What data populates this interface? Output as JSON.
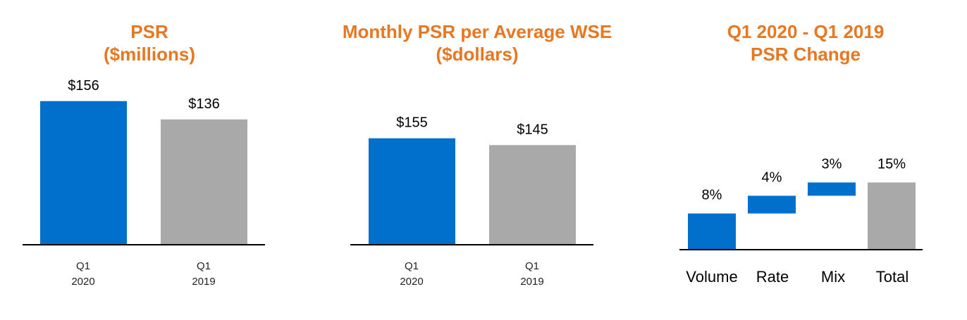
{
  "colors": {
    "title": "#E87722",
    "blue": "#0070CC",
    "gray": "#A9A9A9",
    "axis": "#000000"
  },
  "chart_data": [
    {
      "type": "bar",
      "title": [
        "PSR",
        "($millions)"
      ],
      "categories": [
        [
          "Q1",
          "2020"
        ],
        [
          "Q1",
          "2019"
        ]
      ],
      "values": [
        156,
        136
      ],
      "labels": [
        "$156",
        "$136"
      ],
      "series_colors": [
        "blue",
        "gray"
      ],
      "ylim": [
        0,
        175
      ],
      "grid": false,
      "legend": "none"
    },
    {
      "type": "bar",
      "title": [
        "Monthly PSR per Average WSE",
        "($dollars)"
      ],
      "categories": [
        [
          "Q1",
          "2020"
        ],
        [
          "Q1",
          "2019"
        ]
      ],
      "values": [
        155,
        145
      ],
      "labels": [
        "$155",
        "$145"
      ],
      "series_colors": [
        "blue",
        "gray"
      ],
      "ylim": [
        0,
        235
      ],
      "grid": false,
      "legend": "none"
    },
    {
      "type": "bar",
      "subtype": "waterfall",
      "title": [
        "Q1 2020 - Q1 2019",
        "PSR Change"
      ],
      "categories": [
        "Volume",
        "Rate",
        "Mix",
        "Total"
      ],
      "values": [
        8,
        4,
        3,
        15
      ],
      "labels": [
        "8%",
        "4%",
        "3%",
        "15%"
      ],
      "series_colors": [
        "blue",
        "blue",
        "blue",
        "gray"
      ],
      "ylim": [
        0,
        20
      ],
      "grid": false,
      "legend": "none"
    }
  ]
}
